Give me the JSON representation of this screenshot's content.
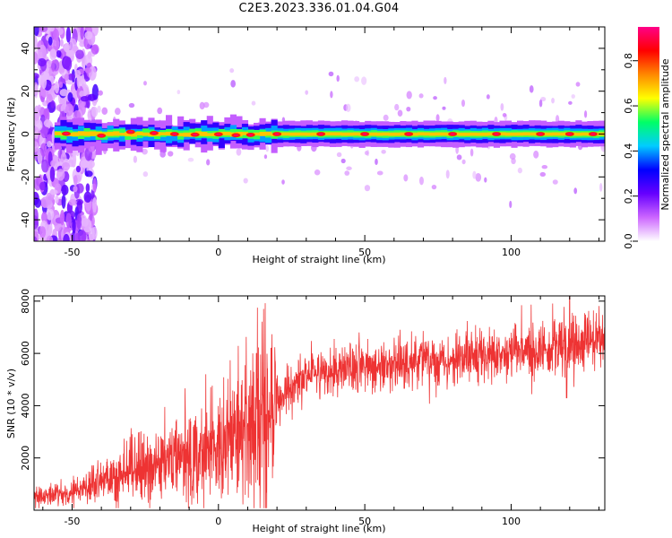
{
  "title": "C2E3.2023.336.01.04.G04",
  "chart_data": [
    {
      "type": "heatmap",
      "xlabel": "Height of straight line (km)",
      "ylabel": "Frequency (Hz)",
      "xlim": [
        -63,
        132
      ],
      "ylim": [
        -50,
        50
      ],
      "xticks": [
        -50,
        0,
        50,
        100
      ],
      "yticks": [
        -40,
        -20,
        0,
        20,
        40
      ],
      "colorbar": {
        "label": "Normalized spectral amplitude",
        "range": [
          0,
          0.95
        ],
        "ticks": [
          0.0,
          0.2,
          0.4,
          0.6,
          0.8
        ],
        "colors": [
          "#ffffff",
          "#cc66ff",
          "#6600ff",
          "#0000ff",
          "#00ccff",
          "#00ff66",
          "#ffff00",
          "#ff8800",
          "#ff0000",
          "#ff0088"
        ]
      },
      "ridge": {
        "center_frequency": 0,
        "peak_positions": [
          -52,
          -40,
          -30,
          -22,
          -15,
          -8,
          0,
          6,
          11,
          20,
          35,
          50,
          65,
          80,
          95,
          110,
          120,
          128
        ]
      },
      "noise_region_x": [
        -63,
        -42
      ]
    },
    {
      "type": "line",
      "xlabel": "Height of straight line (km)",
      "ylabel": "SNR (10 * v/v)",
      "xlim": [
        -63,
        132
      ],
      "ylim": [
        0,
        8200
      ],
      "xticks": [
        -50,
        0,
        50,
        100
      ],
      "yticks": [
        2000,
        4000,
        6000,
        8000
      ],
      "color": "#ee3333",
      "trend": {
        "x": [
          -63,
          -50,
          -40,
          -30,
          -20,
          -10,
          0,
          5,
          10,
          15,
          20,
          25,
          30,
          40,
          50,
          60,
          70,
          80,
          90,
          100,
          110,
          120,
          125,
          132
        ],
        "y": [
          500,
          700,
          1100,
          1500,
          1700,
          2100,
          2600,
          3000,
          3300,
          3700,
          4200,
          4700,
          5100,
          5400,
          5450,
          5600,
          5650,
          5800,
          5900,
          6050,
          6100,
          6300,
          6400,
          6500
        ]
      },
      "spikes": [
        {
          "x": 13,
          "y": 6000
        },
        {
          "x": 18,
          "y": 6200
        },
        {
          "x": 120,
          "y": 8200
        },
        {
          "x": 119,
          "y": 4300
        }
      ]
    }
  ]
}
